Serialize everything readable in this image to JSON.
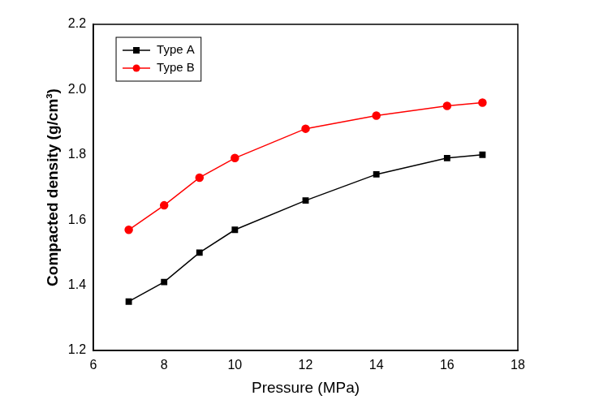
{
  "chart_data": {
    "type": "line",
    "x_label": "Pressure (MPa)",
    "y_label": "Compacted density (g/cm³)",
    "x": [
      7,
      8,
      9,
      10,
      12,
      14,
      16,
      17
    ],
    "series": [
      {
        "name": "Type A",
        "color": "#000000",
        "marker": "square",
        "values": [
          1.35,
          1.41,
          1.5,
          1.57,
          1.66,
          1.74,
          1.79,
          1.8
        ]
      },
      {
        "name": "Type B",
        "color": "#ff0000",
        "marker": "circle",
        "values": [
          1.57,
          1.645,
          1.73,
          1.79,
          1.88,
          1.92,
          1.95,
          1.96
        ]
      }
    ],
    "xlim": [
      6,
      18
    ],
    "xticks": [
      6,
      8,
      10,
      12,
      14,
      16,
      18
    ],
    "ylim": [
      1.2,
      2.2
    ],
    "yticks": [
      1.2,
      1.4,
      1.6,
      1.8,
      {
        "value": 2,
        "label": "2.0"
      },
      2.2
    ],
    "grid": false,
    "legend": "upper left"
  }
}
